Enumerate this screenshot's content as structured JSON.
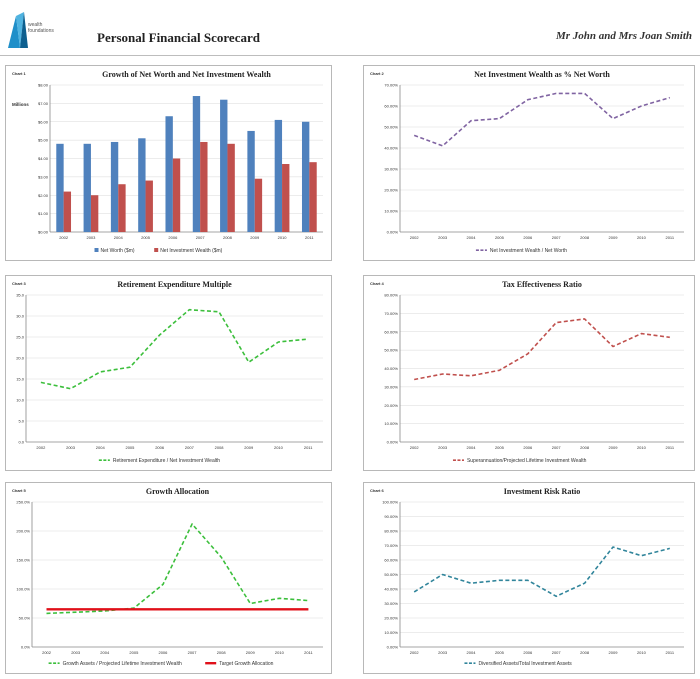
{
  "header": {
    "logo_text": [
      "wealth",
      "foundations"
    ],
    "title": "Personal Financial Scorecard",
    "client": "Mr John and Mrs Joan Smith"
  },
  "colors": {
    "blue": "#4f81bd",
    "red": "#c0504d",
    "purple": "#8064a2",
    "green": "#3cbf3c",
    "brightred": "#e0101a",
    "teal": "#31859b"
  },
  "chart_data": [
    {
      "id": "chart1",
      "tag": "Chart 1",
      "type": "bar",
      "title": "Growth of Net Worth and Net Investment Wealth",
      "unit_label": "Millions",
      "categories": [
        "2002",
        "2003",
        "2004",
        "2005",
        "2006",
        "2007",
        "2008",
        "2009",
        "2010",
        "2011"
      ],
      "series": [
        {
          "name": "Net Worth ($m)",
          "color": "#4f81bd",
          "values": [
            4.8,
            4.8,
            4.9,
            5.1,
            6.3,
            7.4,
            7.2,
            5.5,
            6.1,
            6.0
          ]
        },
        {
          "name": "Net Investment Wealth ($m)",
          "color": "#c0504d",
          "values": [
            2.2,
            2.0,
            2.6,
            2.8,
            4.0,
            4.9,
            4.8,
            2.9,
            3.7,
            3.8
          ]
        }
      ],
      "ylim": [
        0,
        8
      ],
      "yticks": [
        "$0.00",
        "$1.00",
        "$2.00",
        "$3.00",
        "$4.00",
        "$5.00",
        "$6.00",
        "$7.00",
        "$8.00"
      ],
      "legend": "bottom"
    },
    {
      "id": "chart2",
      "tag": "Chart 2",
      "type": "line",
      "title": "Net Investment Wealth as % Net Worth",
      "categories": [
        "2002",
        "2003",
        "2004",
        "2005",
        "2006",
        "2007",
        "2008",
        "2009",
        "2010",
        "2011"
      ],
      "series": [
        {
          "name": "Net Investment Wealth / Net Worth",
          "color": "#8064a2",
          "values": [
            46,
            41,
            53,
            54,
            63,
            66,
            66,
            54,
            60,
            64
          ]
        }
      ],
      "ylim": [
        0,
        70
      ],
      "yticks": [
        "0.00%",
        "10.00%",
        "20.00%",
        "30.00%",
        "40.00%",
        "50.00%",
        "60.00%",
        "70.00%"
      ],
      "legend": "bottom"
    },
    {
      "id": "chart3",
      "tag": "Chart 3",
      "type": "line",
      "title": "Retirement Expenditure Multiple",
      "categories": [
        "2002",
        "2003",
        "2004",
        "2005",
        "2006",
        "2007",
        "2008",
        "2009",
        "2010",
        "2011"
      ],
      "series": [
        {
          "name": "Retirement Expenditure / Net Investment Wealth",
          "color": "#3cbf3c",
          "values": [
            14.2,
            12.7,
            16.7,
            17.8,
            25.5,
            31.5,
            31.0,
            19.0,
            23.8,
            24.5
          ]
        }
      ],
      "ylim": [
        0,
        35
      ],
      "yticks": [
        "0.0",
        "5.0",
        "10.0",
        "15.0",
        "20.0",
        "25.0",
        "30.0",
        "35.0"
      ],
      "legend": "bottom"
    },
    {
      "id": "chart4",
      "tag": "Chart 4",
      "type": "line",
      "title": "Tax Effectiveness Ratio",
      "categories": [
        "2002",
        "2003",
        "2004",
        "2005",
        "2006",
        "2007",
        "2008",
        "2009",
        "2010",
        "2011"
      ],
      "series": [
        {
          "name": "Superannuation/Projected Lifetime Investment Wealth",
          "color": "#c0504d",
          "values": [
            34,
            37,
            36,
            39,
            48,
            65,
            67,
            52,
            59,
            57
          ]
        }
      ],
      "ylim": [
        0,
        80
      ],
      "yticks": [
        "0.00%",
        "10.00%",
        "20.00%",
        "30.00%",
        "40.00%",
        "50.00%",
        "60.00%",
        "70.00%",
        "80.00%"
      ],
      "legend": "bottom"
    },
    {
      "id": "chart5",
      "tag": "Chart 5",
      "type": "line",
      "title": "Growth Allocation",
      "categories": [
        "2002",
        "2003",
        "2004",
        "2005",
        "2006",
        "2007",
        "2008",
        "2009",
        "2010",
        "2011"
      ],
      "series": [
        {
          "name": "Growth Assets / Projected Lifetime Investment Wealth",
          "color": "#3cbf3c",
          "dashed": true,
          "values": [
            58,
            60,
            62,
            67,
            108,
            212,
            155,
            75,
            84,
            80
          ]
        },
        {
          "name": "Target Growth Allocation",
          "color": "#e0101a",
          "dashed": false,
          "values": [
            65,
            65,
            65,
            65,
            65,
            65,
            65,
            65,
            65,
            65
          ]
        }
      ],
      "ylim": [
        0,
        250
      ],
      "yticks": [
        "0.0%",
        "50.0%",
        "100.0%",
        "150.0%",
        "200.0%",
        "250.0%"
      ],
      "legend": "bottom"
    },
    {
      "id": "chart6",
      "tag": "Chart 6",
      "type": "line",
      "title": "Investment Risk Ratio",
      "categories": [
        "2002",
        "2003",
        "2004",
        "2005",
        "2006",
        "2007",
        "2008",
        "2009",
        "2010",
        "2011"
      ],
      "series": [
        {
          "name": "Diversified Assets/Total Investment Assets",
          "color": "#31859b",
          "values": [
            38,
            50,
            44,
            46,
            46,
            35,
            44,
            69,
            63,
            68
          ]
        }
      ],
      "ylim": [
        0,
        100
      ],
      "yticks": [
        "0.00%",
        "10.00%",
        "20.00%",
        "30.00%",
        "40.00%",
        "50.00%",
        "60.00%",
        "70.00%",
        "80.00%",
        "90.00%",
        "100.00%"
      ],
      "legend": "bottom"
    }
  ]
}
